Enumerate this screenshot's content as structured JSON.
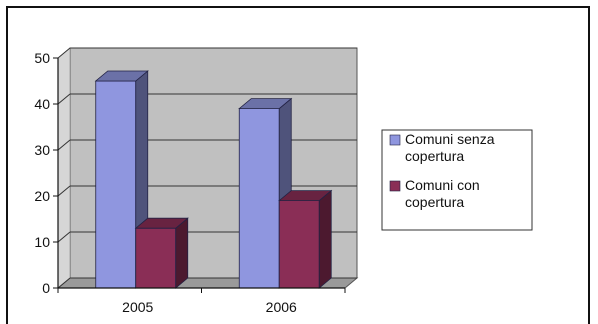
{
  "chart_data": {
    "type": "bar",
    "title": "",
    "xlabel": "",
    "ylabel": "",
    "categories": [
      "2005",
      "2006"
    ],
    "ylim": [
      0,
      50
    ],
    "yticks": [
      0,
      10,
      20,
      30,
      40,
      50
    ],
    "grid": true,
    "three_d": true,
    "legend_position": "right",
    "series": [
      {
        "name": "Comuni senza copertura",
        "legend_lines": [
          "Comuni senza",
          "copertura"
        ],
        "values": [
          45,
          39
        ],
        "color": "#8f96df"
      },
      {
        "name": "Comuni con copertura",
        "legend_lines": [
          "Comuni con",
          "copertura"
        ],
        "values": [
          13,
          19
        ],
        "color": "#8a2e56"
      }
    ],
    "colors": {
      "plot_wall": "#c0c0c0",
      "plot_floor": "#9a9a9a",
      "gridline": "#333333",
      "axis": "#111111"
    }
  }
}
